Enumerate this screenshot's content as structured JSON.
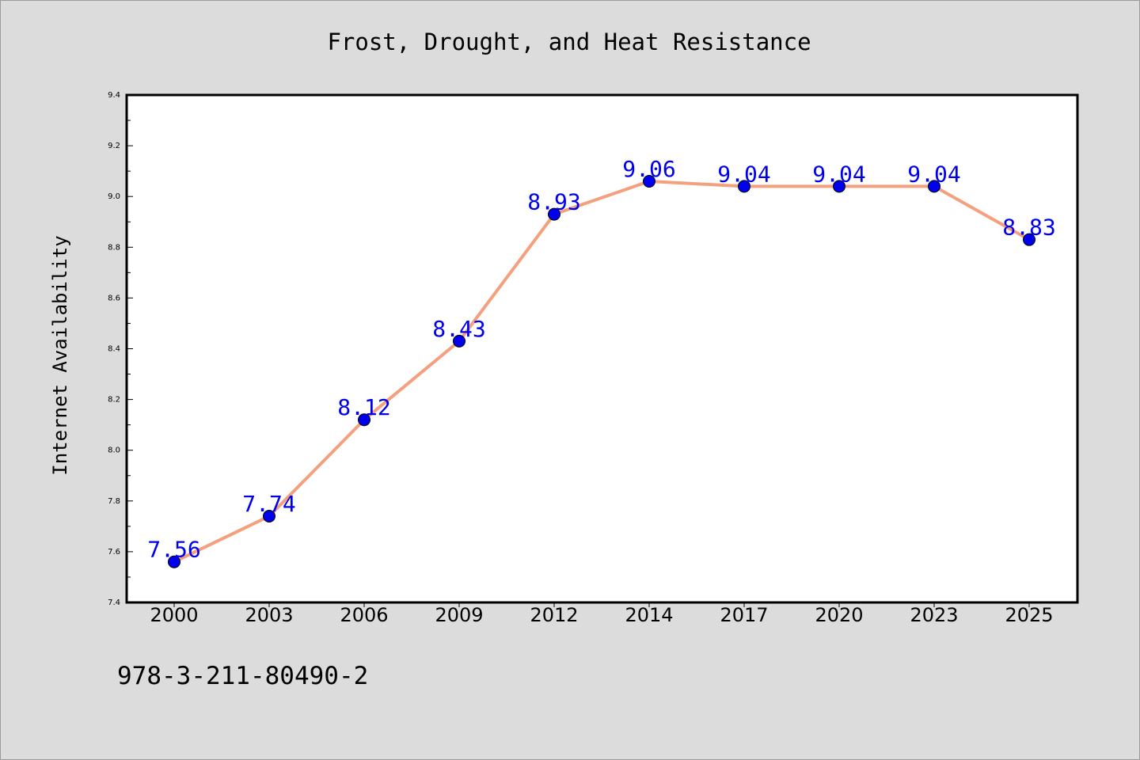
{
  "chart_data": {
    "type": "line",
    "title": "Frost, Drought, and Heat Resistance",
    "ylabel": "Internet Availability",
    "xlabel": "",
    "categories": [
      "2000",
      "2003",
      "2006",
      "2009",
      "2012",
      "2014",
      "2017",
      "2020",
      "2023",
      "2025"
    ],
    "values": [
      7.56,
      7.74,
      8.12,
      8.43,
      8.93,
      9.06,
      9.04,
      9.04,
      9.04,
      8.83
    ],
    "data_labels": [
      "7.56",
      "7.74",
      "8.12",
      "8.43",
      "8.93",
      "9.06",
      "9.04",
      "9.04",
      "9.04",
      "8.83"
    ],
    "ylim": [
      7.4,
      9.4
    ],
    "yticks": [
      "7.4",
      "7.6",
      "7.8",
      "8.0",
      "8.2",
      "8.4",
      "8.6",
      "8.8",
      "9.0",
      "9.2",
      "9.4"
    ],
    "grid": false,
    "line_color": "#f4a07e",
    "marker_color": "#0000ee",
    "label_color": "#0000ee"
  },
  "footer": {
    "code": "978-3-211-80490-2"
  }
}
